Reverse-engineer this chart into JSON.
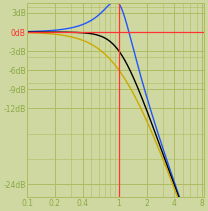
{
  "bg_color": "#cfd8a0",
  "plot_bg_color": "#cfd8a0",
  "grid_color": "#b0bc60",
  "x_ticks": [
    0.1,
    0.2,
    0.4,
    1,
    2,
    4,
    8
  ],
  "x_tick_labels": [
    "0.1",
    "0.2",
    "0.4",
    "1",
    "2",
    "4",
    "8"
  ],
  "y_ticks_db": [
    3,
    0,
    -3,
    -6,
    -9,
    -12,
    -24
  ],
  "y_tick_labels": [
    "3dB",
    "0dB",
    "-3dB",
    "-6dB",
    "-9dB",
    "-12dB",
    "-24dB"
  ],
  "xlim": [
    0.1,
    8.5
  ],
  "ylim_db": [
    -26,
    4.5
  ],
  "x_ref_line": 1.0,
  "y_ref_line_db": 0,
  "ref_line_color": "#ff3333",
  "line_blue_color": "#2255ff",
  "line_black_color": "#000000",
  "line_yellow_color": "#ccaa00",
  "zeta_blue": 0.3,
  "zeta_black": 0.7071,
  "zeta_yellow": 1.0,
  "axis_text_color": "#8aaa44",
  "zero_db_text_color": "#ff3333",
  "tick_fontsize": 5.5,
  "linewidth": 1.0
}
